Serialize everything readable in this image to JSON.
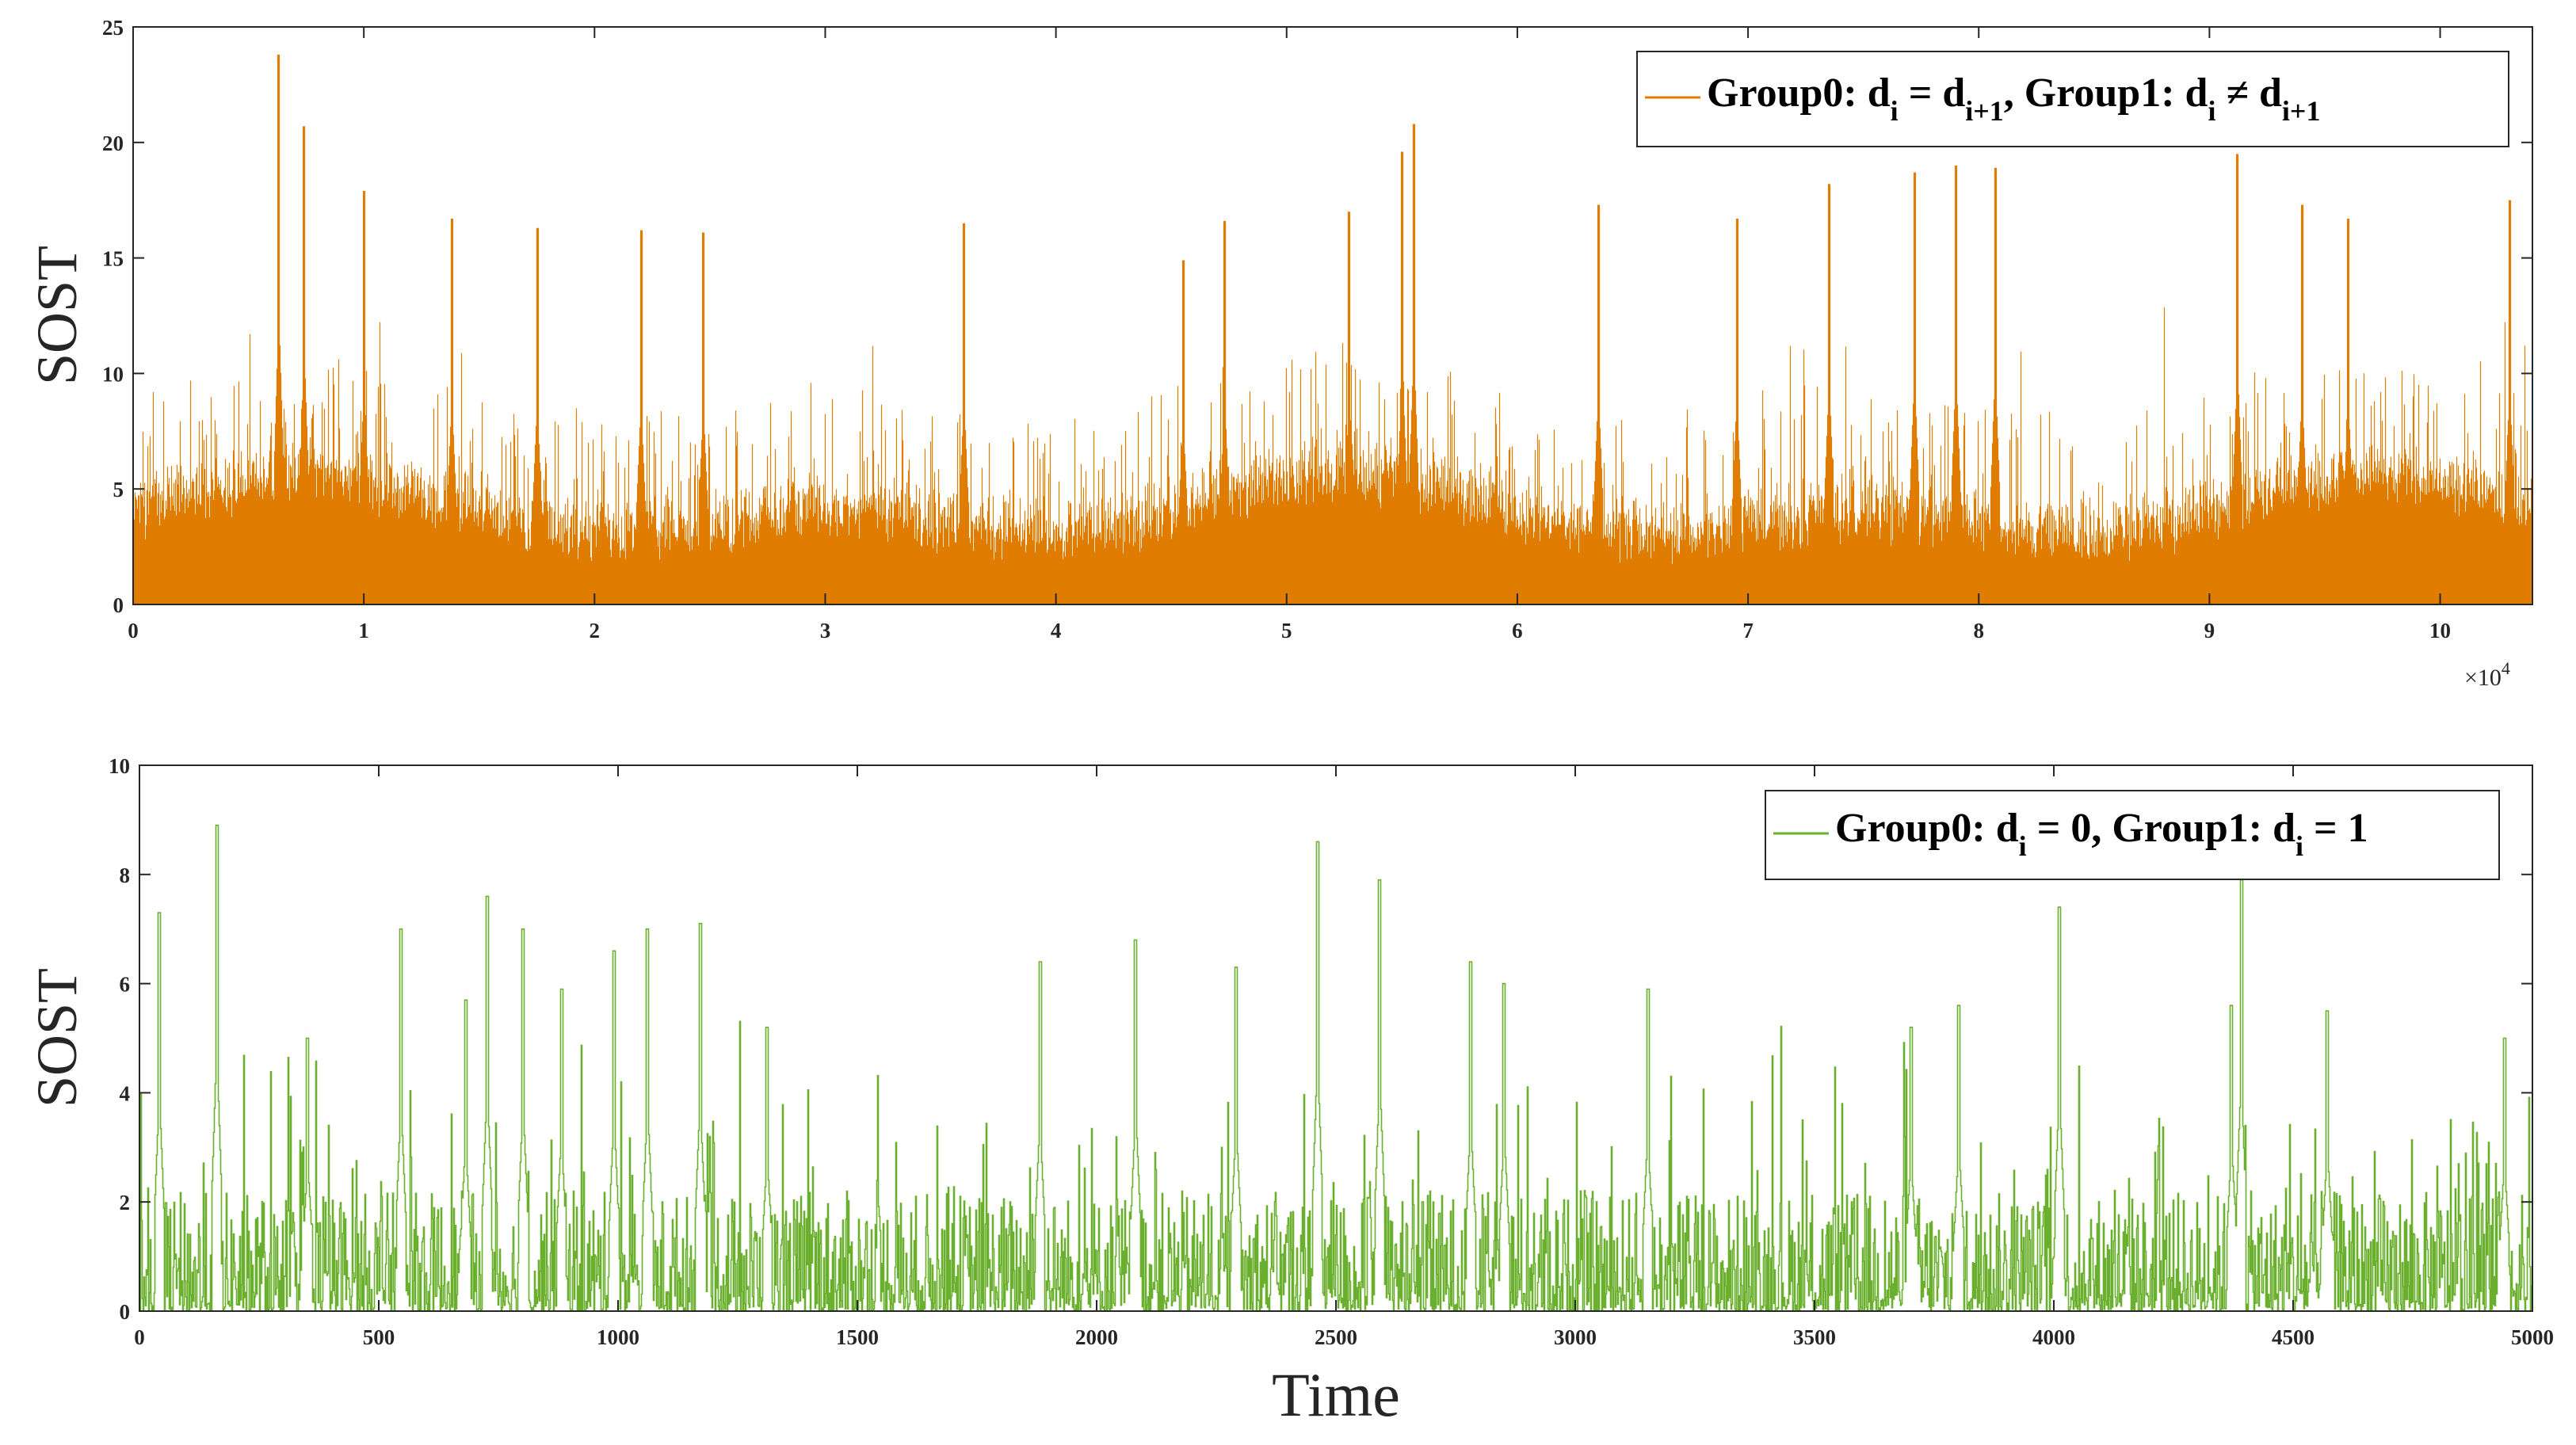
{
  "chart_data": [
    {
      "type": "line",
      "panel": "top",
      "title": "",
      "xlabel": "",
      "ylabel": "SOST",
      "xlim": [
        0,
        10.4
      ],
      "ylim": [
        0,
        25
      ],
      "x_multiplier_text": "×10",
      "x_multiplier_exp": "4",
      "xticks": [
        "0",
        "1",
        "2",
        "3",
        "4",
        "5",
        "6",
        "7",
        "8",
        "9",
        "10"
      ],
      "yticks": [
        "0",
        "5",
        "10",
        "15",
        "20",
        "25"
      ],
      "series_color": "#E07C00",
      "legend": {
        "placement": "top-right",
        "t1": "Group0: d",
        "s1": "i",
        "t2": " = d",
        "s2": "i+1",
        "t3": ", Group1: d",
        "s3": "i",
        "t4": " ≠ d",
        "s4": "i+1"
      },
      "n_points": 104000,
      "baseline_level_estimate": 2.5,
      "notable_peaks": [
        {
          "x": 0.63,
          "y": 23.8
        },
        {
          "x": 0.74,
          "y": 20.7
        },
        {
          "x": 1.0,
          "y": 17.9
        },
        {
          "x": 1.38,
          "y": 16.7
        },
        {
          "x": 1.75,
          "y": 16.3
        },
        {
          "x": 2.2,
          "y": 16.2
        },
        {
          "x": 2.47,
          "y": 16.1
        },
        {
          "x": 3.6,
          "y": 16.5
        },
        {
          "x": 4.55,
          "y": 14.9
        },
        {
          "x": 4.73,
          "y": 16.6
        },
        {
          "x": 5.27,
          "y": 17.0
        },
        {
          "x": 5.5,
          "y": 19.6
        },
        {
          "x": 5.55,
          "y": 20.8
        },
        {
          "x": 6.35,
          "y": 17.3
        },
        {
          "x": 6.95,
          "y": 16.7
        },
        {
          "x": 7.35,
          "y": 18.2
        },
        {
          "x": 7.72,
          "y": 18.7
        },
        {
          "x": 7.9,
          "y": 19.0
        },
        {
          "x": 8.07,
          "y": 18.9
        },
        {
          "x": 9.12,
          "y": 19.5
        },
        {
          "x": 9.4,
          "y": 17.3
        },
        {
          "x": 9.6,
          "y": 16.7
        },
        {
          "x": 10.3,
          "y": 17.5
        }
      ]
    },
    {
      "type": "line",
      "panel": "bottom",
      "title": "",
      "xlabel": "Time",
      "ylabel": "SOST",
      "xlim": [
        0,
        5000
      ],
      "ylim": [
        0,
        10
      ],
      "xticks": [
        "0",
        "500",
        "1000",
        "1500",
        "2000",
        "2500",
        "3000",
        "3500",
        "4000",
        "4500",
        "5000"
      ],
      "yticks": [
        "0",
        "2",
        "4",
        "6",
        "8",
        "10"
      ],
      "series_color": "#6AAF2E",
      "legend": {
        "placement": "top-right",
        "t1": "Group0: d",
        "s1": "i",
        "t2": " = 0, Group1: d",
        "s2": "i",
        "t3": " = 1"
      },
      "n_points": 5000,
      "notable_peaks": [
        {
          "x": 40,
          "y": 7.3
        },
        {
          "x": 160,
          "y": 8.9
        },
        {
          "x": 350,
          "y": 5.0
        },
        {
          "x": 545,
          "y": 7.0
        },
        {
          "x": 680,
          "y": 5.7
        },
        {
          "x": 725,
          "y": 7.6
        },
        {
          "x": 800,
          "y": 7.0
        },
        {
          "x": 880,
          "y": 5.9
        },
        {
          "x": 990,
          "y": 6.6
        },
        {
          "x": 1060,
          "y": 7.0
        },
        {
          "x": 1170,
          "y": 7.1
        },
        {
          "x": 1310,
          "y": 5.2
        },
        {
          "x": 1880,
          "y": 6.4
        },
        {
          "x": 2080,
          "y": 6.8
        },
        {
          "x": 2290,
          "y": 6.3
        },
        {
          "x": 2460,
          "y": 8.6
        },
        {
          "x": 2590,
          "y": 7.9
        },
        {
          "x": 2780,
          "y": 6.4
        },
        {
          "x": 2850,
          "y": 6.0
        },
        {
          "x": 3150,
          "y": 5.9
        },
        {
          "x": 3700,
          "y": 5.2
        },
        {
          "x": 3800,
          "y": 5.6
        },
        {
          "x": 4010,
          "y": 7.4
        },
        {
          "x": 4370,
          "y": 5.6
        },
        {
          "x": 4390,
          "y": 7.9
        },
        {
          "x": 4570,
          "y": 5.5
        },
        {
          "x": 4940,
          "y": 5.0
        }
      ]
    }
  ]
}
